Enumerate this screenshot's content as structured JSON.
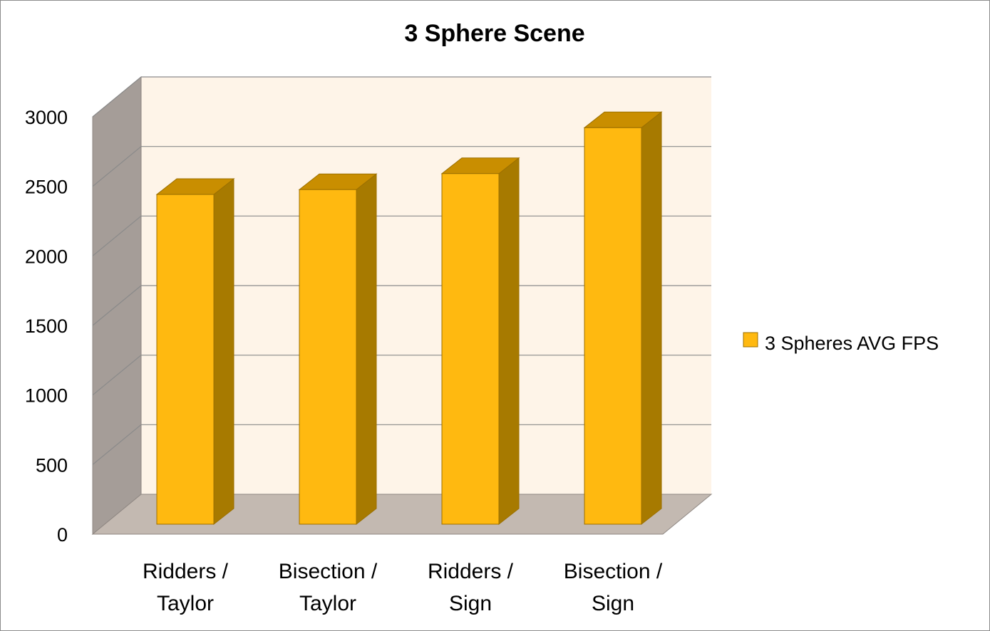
{
  "chart_data": {
    "type": "bar",
    "title": "3 Sphere Scene",
    "categories": [
      [
        "Ridders /",
        "Taylor"
      ],
      [
        "Bisection /",
        "Taylor"
      ],
      [
        "Ridders /",
        "Sign"
      ],
      [
        "Bisection /",
        "Sign"
      ]
    ],
    "series": [
      {
        "name": "3 Spheres AVG FPS",
        "values": [
          2370,
          2405,
          2520,
          2850
        ]
      }
    ],
    "ylim": [
      0,
      3000
    ],
    "yticks": [
      0,
      500,
      1000,
      1500,
      2000,
      2500,
      3000
    ],
    "grid": true,
    "legend_position": "right",
    "colors": {
      "bar_front": "#FFB910",
      "bar_top": "#C98E00",
      "bar_side": "#A77A00",
      "bar_stroke": "#9C7000",
      "back_wall": "#FEF4E8",
      "side_wall": "#A59D98",
      "floor": "#C3B9B1",
      "gridline": "#8A8A8A"
    }
  }
}
